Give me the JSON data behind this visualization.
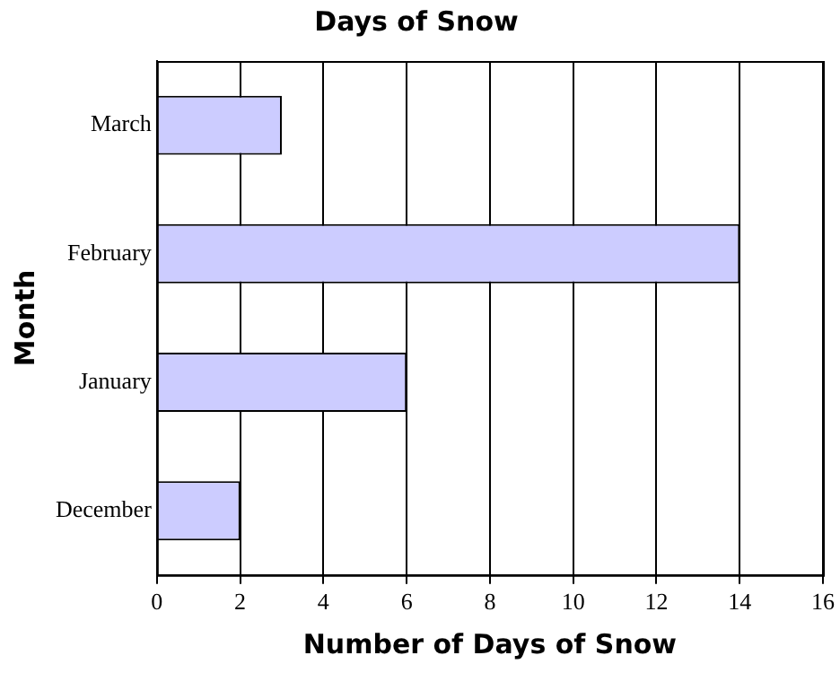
{
  "chart_data": {
    "type": "bar",
    "orientation": "horizontal",
    "title": "Days of Snow",
    "xlabel": "Number of Days of Snow",
    "ylabel": "Month",
    "categories": [
      "March",
      "February",
      "January",
      "December"
    ],
    "values": [
      3,
      14,
      6,
      2
    ],
    "color": "#ccccff",
    "xlim": [
      0,
      16
    ],
    "xticks": [
      0,
      2,
      4,
      6,
      8,
      10,
      12,
      14,
      16
    ],
    "grid": "x",
    "legend": false
  }
}
